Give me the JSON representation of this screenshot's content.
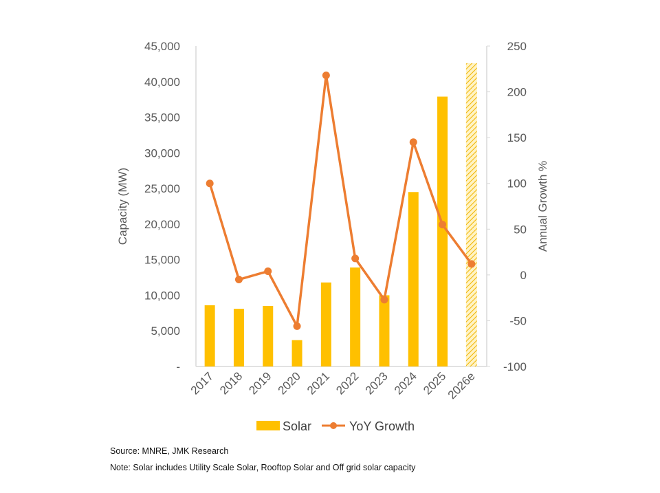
{
  "chart_data": {
    "type": "bar+line",
    "categories": [
      "2017",
      "2018",
      "2019",
      "2020",
      "2021",
      "2022",
      "2023",
      "2024",
      "2025",
      "2026e"
    ],
    "series": [
      {
        "name": "Solar",
        "type": "bar",
        "axis": "left",
        "color": "#FFC000",
        "values": [
          8600,
          8100,
          8500,
          3700,
          11800,
          13900,
          10000,
          24500,
          37900,
          42600
        ],
        "estimated_last": true
      },
      {
        "name": "YoY Growth",
        "type": "line",
        "axis": "right",
        "color": "#ED7D31",
        "values": [
          100,
          -5,
          4,
          -56,
          218,
          18,
          -27,
          145,
          55,
          12
        ]
      }
    ],
    "ylabel": "Capacity (MW)",
    "y2label": "Annual Growth %",
    "ylim": [
      0,
      45000
    ],
    "y2lim": [
      -100,
      250
    ],
    "yticks": [
      "-",
      "5,000",
      "10,000",
      "15,000",
      "20,000",
      "25,000",
      "30,000",
      "35,000",
      "40,000",
      "45,000"
    ],
    "y2ticks": [
      "-100",
      "-50",
      "0",
      "50",
      "100",
      "150",
      "200",
      "250"
    ],
    "legend": "bottom",
    "grid": false
  },
  "notes": {
    "source": "Source: MNRE, JMK Research",
    "note": "Note: Solar includes Utility Scale Solar, Rooftop Solar and Off grid solar capacity"
  }
}
